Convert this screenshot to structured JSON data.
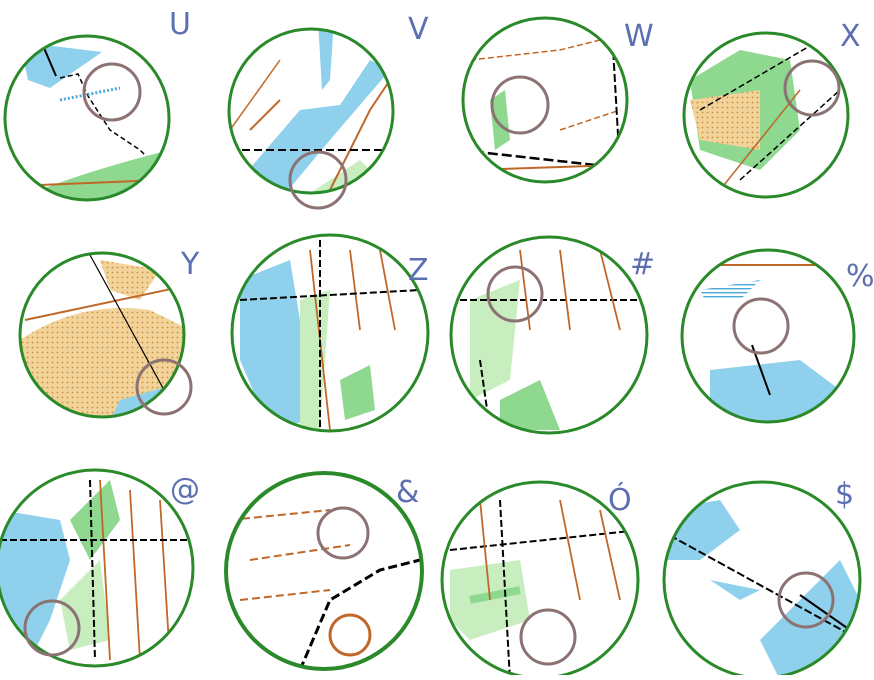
{
  "maps": [
    {
      "label": "U"
    },
    {
      "label": "V"
    },
    {
      "label": "W"
    },
    {
      "label": "X"
    },
    {
      "label": "Y"
    },
    {
      "label": "Z"
    },
    {
      "label": "#"
    },
    {
      "label": "%"
    },
    {
      "label": "@"
    },
    {
      "label": "&"
    },
    {
      "label": "Ó"
    },
    {
      "label": "$"
    }
  ],
  "colors": {
    "ring": "#2a8a2a",
    "water": "#8fd0ec",
    "green": "#8fd88f",
    "lightgreen": "#c8eec0",
    "open": "#f2d39a",
    "contour": "#c0672a",
    "path": "#000000",
    "control": "#8c7272",
    "label": "#5c6fb0"
  }
}
